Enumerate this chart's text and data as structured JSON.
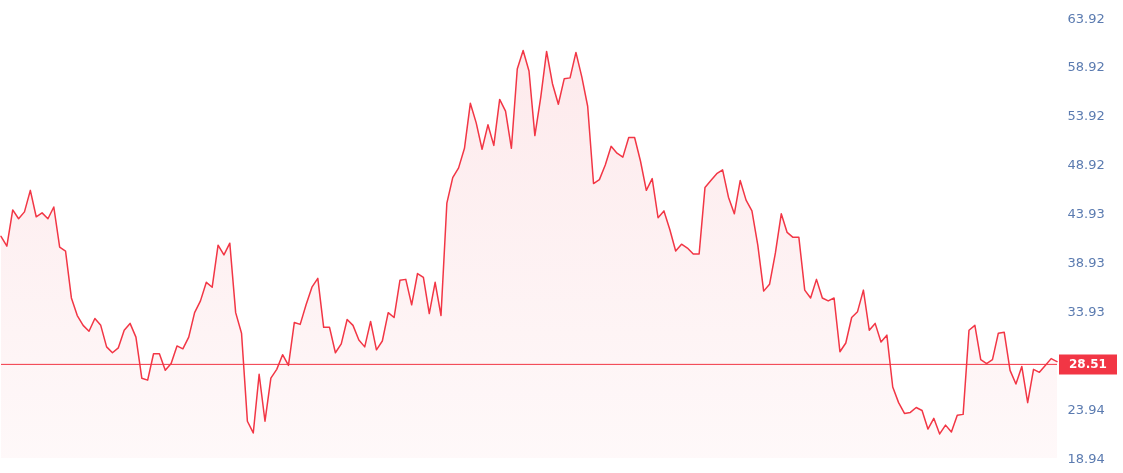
{
  "chart_data": {
    "type": "area",
    "color": "#f23645",
    "categories": [
      null,
      null,
      null,
      null,
      null,
      null,
      null,
      null,
      null,
      null,
      null,
      null,
      null,
      null,
      null,
      null,
      null,
      null,
      null,
      null,
      null,
      null,
      null,
      null,
      null,
      null,
      null,
      null,
      null,
      null,
      null,
      null,
      null,
      null,
      null,
      null,
      null,
      null,
      null,
      null,
      null,
      null,
      null,
      null,
      null,
      null,
      null,
      null,
      null,
      null,
      null,
      null,
      null,
      null,
      null,
      null,
      null,
      null,
      null,
      null,
      null,
      null,
      null,
      null,
      null,
      null,
      null,
      null,
      null,
      null,
      null,
      null,
      null,
      null,
      null,
      null,
      null,
      null,
      null,
      null,
      null,
      null,
      null,
      null,
      null,
      null,
      null,
      null,
      null,
      null,
      null,
      null,
      null,
      null,
      null,
      null,
      null,
      null,
      null,
      null,
      null,
      null,
      null,
      null,
      null,
      null,
      null,
      null,
      null,
      null,
      null,
      null,
      null,
      null,
      null,
      null,
      null,
      null,
      null,
      null,
      null,
      null,
      null,
      null,
      null,
      null,
      null,
      null,
      null,
      null,
      null,
      null,
      null,
      null,
      null,
      null,
      null,
      null,
      null,
      null,
      null,
      null,
      null,
      null,
      null,
      null,
      null,
      null,
      null,
      null,
      null,
      null,
      null,
      null,
      null,
      null,
      null,
      null,
      null,
      null,
      null,
      null,
      null,
      null,
      null,
      null,
      null,
      null,
      null,
      null,
      null,
      null,
      null,
      null,
      null,
      null,
      null,
      null,
      null,
      null,
      null
    ],
    "values": [
      41.6,
      40.6,
      44.3,
      43.4,
      44.1,
      46.3,
      43.6,
      44.0,
      43.4,
      44.6,
      40.5,
      40.1,
      35.3,
      33.5,
      32.5,
      31.9,
      33.2,
      32.5,
      30.3,
      29.7,
      30.2,
      32.0,
      32.7,
      31.3,
      27.1,
      26.9,
      29.6,
      29.6,
      27.9,
      28.6,
      30.4,
      30.1,
      31.3,
      33.8,
      35.0,
      36.9,
      36.4,
      40.7,
      39.7,
      40.9,
      33.8,
      31.7,
      22.7,
      21.5,
      27.5,
      22.7,
      27.1,
      28.0,
      29.5,
      28.4,
      32.8,
      32.6,
      34.6,
      36.4,
      37.3,
      32.3,
      32.3,
      29.7,
      30.6,
      33.1,
      32.5,
      31.0,
      30.3,
      32.9,
      30.0,
      30.9,
      33.8,
      33.3,
      37.1,
      37.2,
      34.6,
      37.8,
      37.4,
      33.7,
      36.9,
      33.5,
      45.0,
      47.6,
      48.6,
      50.6,
      55.2,
      53.2,
      50.5,
      53.0,
      50.9,
      55.6,
      54.4,
      50.6,
      58.7,
      60.6,
      58.5,
      51.9,
      55.8,
      60.5,
      57.2,
      55.1,
      57.7,
      57.8,
      60.4,
      57.9,
      54.9,
      47.0,
      47.4,
      48.9,
      50.8,
      50.1,
      49.7,
      51.7,
      51.7,
      49.3,
      46.3,
      47.5,
      43.5,
      44.2,
      42.3,
      40.1,
      40.8,
      40.4,
      39.8,
      39.8,
      46.6,
      47.3,
      48.0,
      48.4,
      45.6,
      43.9,
      47.3,
      45.3,
      44.2,
      40.7,
      36.0,
      36.7,
      39.9,
      43.9,
      42.0,
      41.5,
      41.5,
      36.1,
      35.3,
      37.2,
      35.3,
      35.0,
      35.3,
      29.8,
      30.7,
      33.3,
      33.9,
      36.1,
      32.0,
      32.7,
      30.8,
      31.5,
      26.2,
      24.6,
      23.5,
      23.6,
      24.1,
      23.8,
      21.9,
      23.0,
      21.4,
      22.3,
      21.6,
      23.3,
      23.4,
      32.0,
      32.5,
      29.0,
      28.6,
      29.0,
      31.7,
      31.8,
      27.9,
      26.5,
      28.3,
      24.6,
      28.0,
      27.7,
      28.4,
      29.1,
      28.8
    ],
    "ylim": [
      18.94,
      63.92
    ],
    "yticks": [
      18.94,
      23.94,
      33.93,
      38.93,
      43.93,
      48.92,
      53.92,
      58.92,
      63.92
    ],
    "ref_lines": [
      {
        "axis": "y",
        "value": 28.51,
        "label": "28.51",
        "color": "#f23645"
      }
    ],
    "tick_labels": "y",
    "grid": false
  }
}
